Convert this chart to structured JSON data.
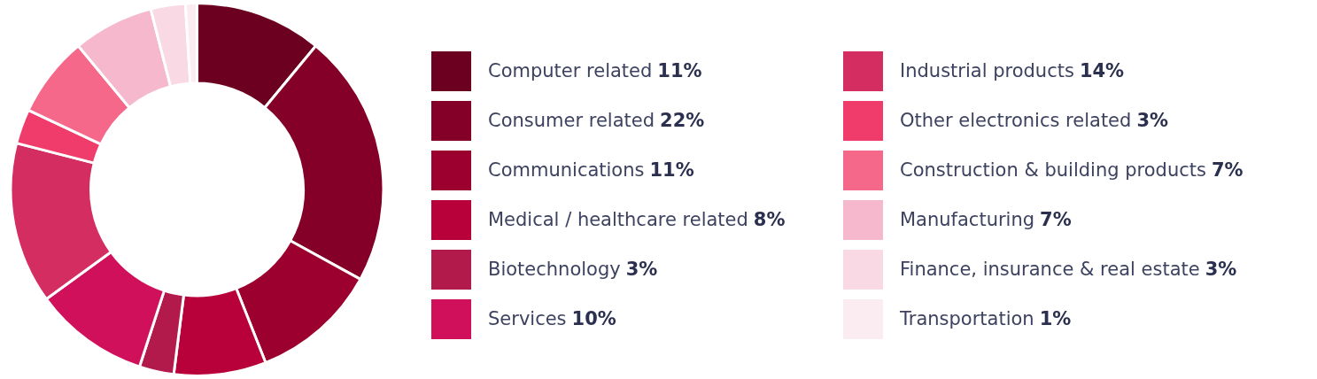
{
  "chart_data": {
    "type": "donut",
    "categories": [
      "Computer related",
      "Consumer related",
      "Communications",
      "Medical / healthcare related",
      "Biotechnology",
      "Services",
      "Industrial products",
      "Other electronics related",
      "Construction & building products",
      "Manufacturing",
      "Finance, insurance & real estate",
      "Transportation"
    ],
    "values": [
      11,
      22,
      11,
      8,
      3,
      10,
      14,
      3,
      7,
      7,
      3,
      1
    ],
    "value_labels": [
      "11%",
      "22%",
      "11%",
      "8%",
      "3%",
      "10%",
      "14%",
      "3%",
      "7%",
      "7%",
      "3%",
      "1%"
    ],
    "colors": [
      "#6b0020",
      "#850028",
      "#9c002e",
      "#b8003a",
      "#b31a4c",
      "#d0105a",
      "#d42d62",
      "#f03c6a",
      "#f5688a",
      "#f5b8cc",
      "#f8d9e4",
      "#fbecf1"
    ],
    "legend": "right"
  }
}
